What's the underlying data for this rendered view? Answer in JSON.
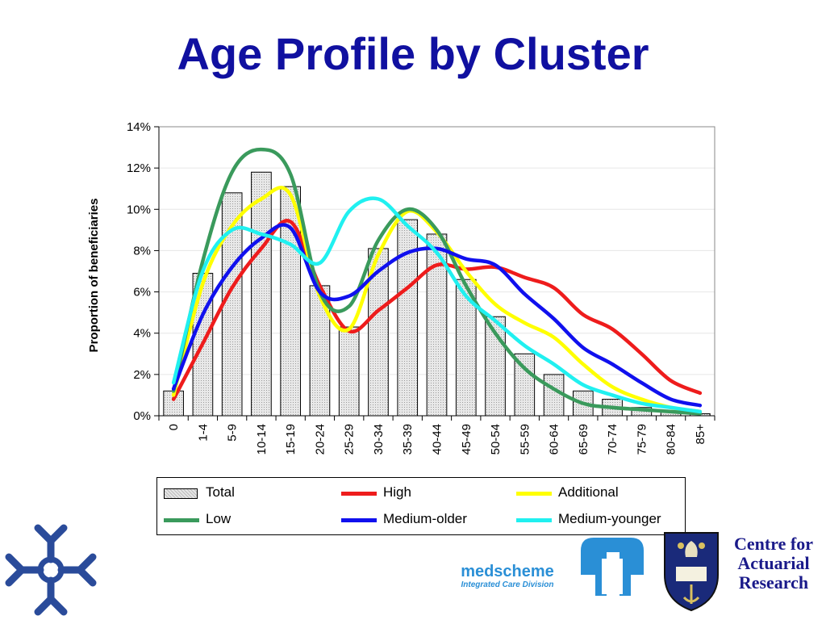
{
  "slide": {
    "title": "Age Profile by Cluster"
  },
  "chart_data": {
    "type": "bar",
    "ylabel": "Proportion of beneficiaries",
    "xlabel": "",
    "ylim": [
      0,
      14
    ],
    "yticks": [
      "0%",
      "2%",
      "4%",
      "6%",
      "8%",
      "10%",
      "12%",
      "14%"
    ],
    "categories": [
      "0",
      "1-4",
      "5-9",
      "10-14",
      "15-19",
      "20-24",
      "25-29",
      "30-34",
      "35-39",
      "40-44",
      "45-49",
      "50-54",
      "55-59",
      "60-64",
      "65-69",
      "70-74",
      "75-79",
      "80-84",
      "85+"
    ],
    "bars": {
      "name": "Total",
      "values": [
        1.2,
        6.9,
        10.8,
        11.8,
        11.1,
        6.3,
        4.3,
        8.1,
        9.5,
        8.8,
        6.6,
        4.8,
        3.0,
        2.0,
        1.2,
        0.8,
        0.4,
        0.2,
        0.1
      ]
    },
    "series": [
      {
        "name": "High",
        "color": "#ee1c1c",
        "values": [
          0.8,
          3.5,
          6.2,
          8.1,
          9.4,
          6.3,
          4.1,
          5.1,
          6.2,
          7.3,
          7.1,
          7.2,
          6.7,
          6.2,
          4.9,
          4.2,
          3.0,
          1.7,
          1.1
        ]
      },
      {
        "name": "Additional",
        "color": "#ffff00",
        "values": [
          1.0,
          6.4,
          9.2,
          10.5,
          10.7,
          5.8,
          4.2,
          7.8,
          9.9,
          8.9,
          7.0,
          5.4,
          4.5,
          3.8,
          2.5,
          1.4,
          0.8,
          0.4,
          0.2
        ]
      },
      {
        "name": "Low",
        "color": "#3a9a5c",
        "values": [
          1.2,
          7.5,
          11.8,
          12.9,
          11.7,
          6.0,
          5.3,
          8.5,
          10.0,
          9.0,
          6.3,
          4.0,
          2.3,
          1.3,
          0.6,
          0.4,
          0.3,
          0.2,
          0.1
        ]
      },
      {
        "name": "Medium-older",
        "color": "#1010ee",
        "values": [
          1.3,
          4.9,
          7.2,
          8.6,
          9.1,
          6.0,
          5.8,
          7.0,
          7.9,
          8.1,
          7.6,
          7.3,
          5.9,
          4.7,
          3.3,
          2.5,
          1.6,
          0.8,
          0.5
        ]
      },
      {
        "name": "Medium-younger",
        "color": "#20f0f0",
        "values": [
          1.6,
          7.0,
          9.0,
          8.8,
          8.3,
          7.4,
          9.9,
          10.5,
          9.2,
          7.9,
          5.8,
          4.6,
          3.4,
          2.5,
          1.5,
          1.0,
          0.6,
          0.4,
          0.2
        ]
      }
    ],
    "legend": {
      "placement": "bottom",
      "entries": [
        "Total",
        "High",
        "Additional",
        "Low",
        "Medium-older",
        "Medium-younger"
      ]
    }
  },
  "logos": {
    "medscheme_name": "medscheme",
    "medscheme_division": "Integrated Care Division",
    "car_line1": "Centre for",
    "car_line2": "Actuarial",
    "car_line3": "Research",
    "cross_color": "#2a4b9a",
    "med_icon_color": "#2a8fd6",
    "shield_color": "#1a2a7a"
  }
}
